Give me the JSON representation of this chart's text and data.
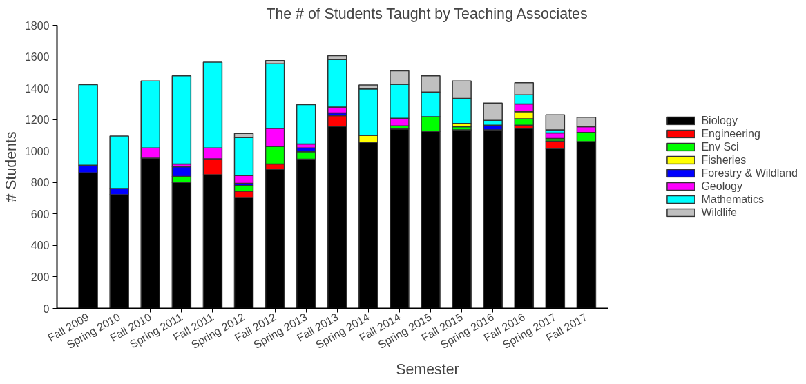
{
  "chart_data": {
    "type": "bar",
    "stacked": true,
    "title": "The # of Students Taught by Teaching Associates",
    "xlabel": "Semester",
    "ylabel": "# Students",
    "categories": [
      "Fall 2009",
      "Spring 2010",
      "Fall 2010",
      "Spring 2011",
      "Fall 2011",
      "Spring 2012",
      "Fall 2012",
      "Spring 2013",
      "Fall 2013",
      "Spring 2014",
      "Fall 2014",
      "Spring 2015",
      "Fall 2015",
      "Spring 2016",
      "Fall 2016",
      "Spring 2017",
      "Fall 2017"
    ],
    "series": [
      {
        "name": "Biology",
        "color": "#000000",
        "values": [
          862,
          722,
          955,
          800,
          850,
          705,
          885,
          948,
          1158,
          1055,
          1140,
          1125,
          1135,
          1135,
          1145,
          1015,
          1060
        ]
      },
      {
        "name": "Engineering",
        "color": "#ff0000",
        "values": [
          0,
          0,
          0,
          0,
          100,
          40,
          33,
          0,
          67,
          0,
          0,
          0,
          0,
          0,
          20,
          48,
          0
        ]
      },
      {
        "name": "Env Sci",
        "color": "#00ff00",
        "values": [
          0,
          0,
          0,
          38,
          0,
          35,
          112,
          47,
          0,
          0,
          20,
          93,
          20,
          0,
          40,
          17,
          58
        ]
      },
      {
        "name": "Fisheries",
        "color": "#ffff00",
        "values": [
          0,
          0,
          0,
          0,
          0,
          0,
          0,
          0,
          0,
          45,
          0,
          0,
          20,
          0,
          45,
          0,
          0
        ]
      },
      {
        "name": "Forestry & Wildland",
        "color": "#0000ff",
        "values": [
          48,
          40,
          0,
          62,
          0,
          15,
          0,
          25,
          17,
          0,
          0,
          0,
          0,
          30,
          0,
          0,
          0
        ]
      },
      {
        "name": "Geology",
        "color": "#ff00ff",
        "values": [
          0,
          0,
          65,
          18,
          70,
          50,
          115,
          25,
          38,
          0,
          48,
          0,
          0,
          0,
          50,
          35,
          37
        ]
      },
      {
        "name": "Mathematics",
        "color": "#00ffff",
        "values": [
          512,
          333,
          425,
          560,
          545,
          240,
          410,
          250,
          302,
          295,
          217,
          157,
          160,
          30,
          58,
          20,
          0
        ]
      },
      {
        "name": "Wildlife",
        "color": "#c0c0c0",
        "values": [
          0,
          0,
          0,
          0,
          0,
          27,
          20,
          0,
          25,
          25,
          85,
          103,
          110,
          110,
          77,
          95,
          60
        ]
      }
    ],
    "ylim": [
      0,
      1800
    ],
    "yticks": [
      0,
      200,
      400,
      600,
      800,
      1000,
      1200,
      1400,
      1600,
      1800
    ],
    "grid": false,
    "legend": "right"
  }
}
